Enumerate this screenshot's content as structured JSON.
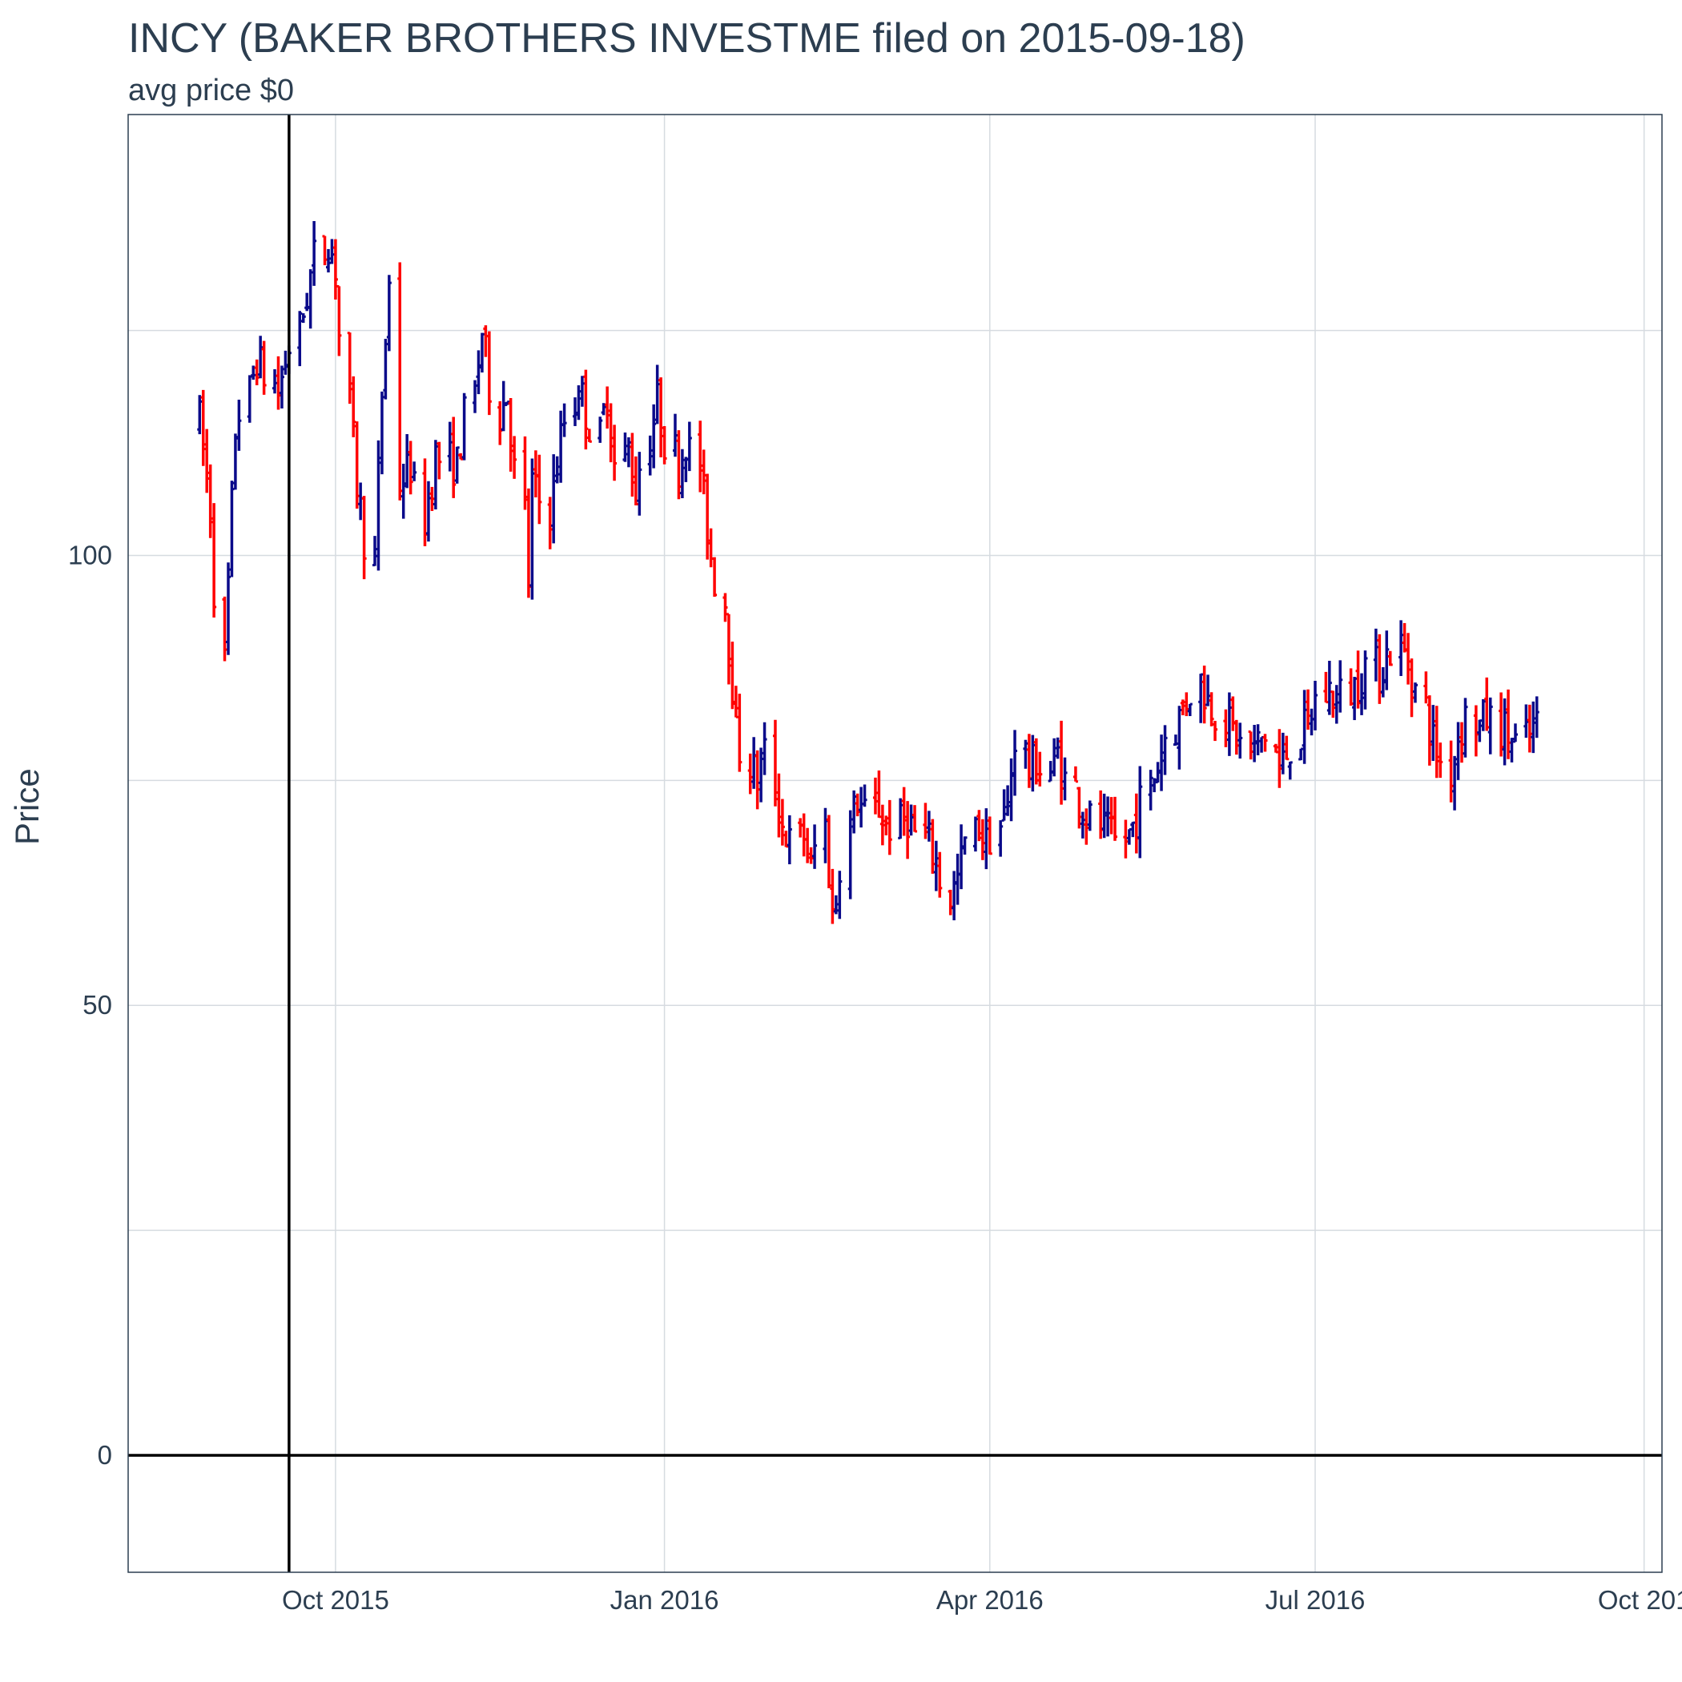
{
  "chart_data": {
    "type": "ohlc",
    "title": "INCY (BAKER BROTHERS INVESTME filed on 2015-09-18)",
    "subtitle": "avg price $0",
    "ylabel": "Price",
    "xlabel": "",
    "ylim": [
      -13,
      149
    ],
    "yticks": [
      0,
      50,
      100
    ],
    "xticks": [
      "Oct 2015",
      "Jan 2016",
      "Apr 2016",
      "Jul 2016",
      "Oct 201"
    ],
    "xtick_dates": [
      "2015-10-01",
      "2016-01-01",
      "2016-04-01",
      "2016-07-01",
      "2016-10-01"
    ],
    "xlim": [
      "2015-08-04",
      "2016-10-06"
    ],
    "grid": true,
    "legend": "none",
    "vline_date": "2015-09-18",
    "hline_value": 0,
    "up_color": "#0a0a8a",
    "down_color": "#ff0000",
    "bar_x_start": "2015-08-22",
    "anchors": [
      [
        0,
        115
      ],
      [
        3,
        105
      ],
      [
        5,
        88
      ],
      [
        8,
        114
      ],
      [
        12,
        122
      ],
      [
        16,
        118
      ],
      [
        20,
        125
      ],
      [
        24,
        133
      ],
      [
        26,
        135
      ],
      [
        28,
        132
      ],
      [
        30,
        117
      ],
      [
        32,
        108
      ],
      [
        35,
        99
      ],
      [
        37,
        118
      ],
      [
        39,
        130
      ],
      [
        40,
        108
      ],
      [
        43,
        110
      ],
      [
        45,
        104
      ],
      [
        48,
        111
      ],
      [
        52,
        110
      ],
      [
        55,
        118
      ],
      [
        57,
        125
      ],
      [
        60,
        116
      ],
      [
        62,
        118
      ],
      [
        65,
        105
      ],
      [
        66,
        97
      ],
      [
        67,
        108
      ],
      [
        70,
        105
      ],
      [
        73,
        113
      ],
      [
        76,
        119
      ],
      [
        78,
        116
      ],
      [
        80,
        113
      ],
      [
        82,
        118
      ],
      [
        84,
        110
      ],
      [
        86,
        112
      ],
      [
        88,
        107
      ],
      [
        90,
        113
      ],
      [
        92,
        117
      ],
      [
        94,
        113
      ],
      [
        96,
        110
      ],
      [
        98,
        113
      ],
      [
        100,
        110
      ],
      [
        101,
        106
      ],
      [
        103,
        100
      ],
      [
        105,
        95
      ],
      [
        106,
        90
      ],
      [
        107,
        86
      ],
      [
        108,
        80
      ],
      [
        110,
        77
      ],
      [
        112,
        75
      ],
      [
        114,
        78
      ],
      [
        115,
        74
      ],
      [
        117,
        70
      ],
      [
        119,
        68
      ],
      [
        121,
        69
      ],
      [
        123,
        65
      ],
      [
        125,
        70
      ],
      [
        127,
        60
      ],
      [
        128,
        62
      ],
      [
        130,
        70
      ],
      [
        132,
        73
      ],
      [
        134,
        71
      ],
      [
        136,
        72
      ],
      [
        138,
        70
      ],
      [
        140,
        70
      ],
      [
        142,
        71
      ],
      [
        144,
        69
      ],
      [
        146,
        68
      ],
      [
        148,
        66
      ],
      [
        150,
        62
      ],
      [
        152,
        64
      ],
      [
        154,
        68
      ],
      [
        156,
        70
      ],
      [
        158,
        68
      ],
      [
        160,
        70
      ],
      [
        162,
        72
      ],
      [
        164,
        80
      ],
      [
        166,
        76
      ],
      [
        168,
        77
      ],
      [
        170,
        76
      ],
      [
        172,
        78
      ],
      [
        174,
        75
      ],
      [
        176,
        73
      ],
      [
        178,
        71
      ],
      [
        180,
        70
      ],
      [
        182,
        69
      ],
      [
        184,
        68
      ],
      [
        186,
        69
      ],
      [
        188,
        71
      ],
      [
        190,
        74
      ],
      [
        192,
        77
      ],
      [
        194,
        80
      ],
      [
        196,
        82
      ],
      [
        198,
        84
      ],
      [
        200,
        86
      ],
      [
        202,
        84
      ],
      [
        204,
        83
      ],
      [
        206,
        81
      ],
      [
        208,
        80
      ],
      [
        210,
        78
      ],
      [
        212,
        79
      ],
      [
        214,
        80
      ],
      [
        216,
        76
      ],
      [
        218,
        78
      ],
      [
        220,
        80
      ],
      [
        222,
        81
      ],
      [
        224,
        84
      ],
      [
        226,
        85
      ],
      [
        228,
        84
      ],
      [
        230,
        85
      ],
      [
        232,
        86
      ],
      [
        234,
        88
      ],
      [
        236,
        87
      ],
      [
        238,
        89
      ],
      [
        240,
        90
      ],
      [
        242,
        88
      ],
      [
        244,
        85
      ],
      [
        246,
        81
      ],
      [
        248,
        78
      ],
      [
        250,
        76
      ],
      [
        252,
        80
      ],
      [
        254,
        82
      ],
      [
        256,
        81
      ],
      [
        258,
        82
      ],
      [
        260,
        81
      ],
      [
        262,
        80
      ],
      [
        264,
        79
      ],
      [
        266,
        80
      ],
      [
        268,
        81
      ]
    ]
  }
}
